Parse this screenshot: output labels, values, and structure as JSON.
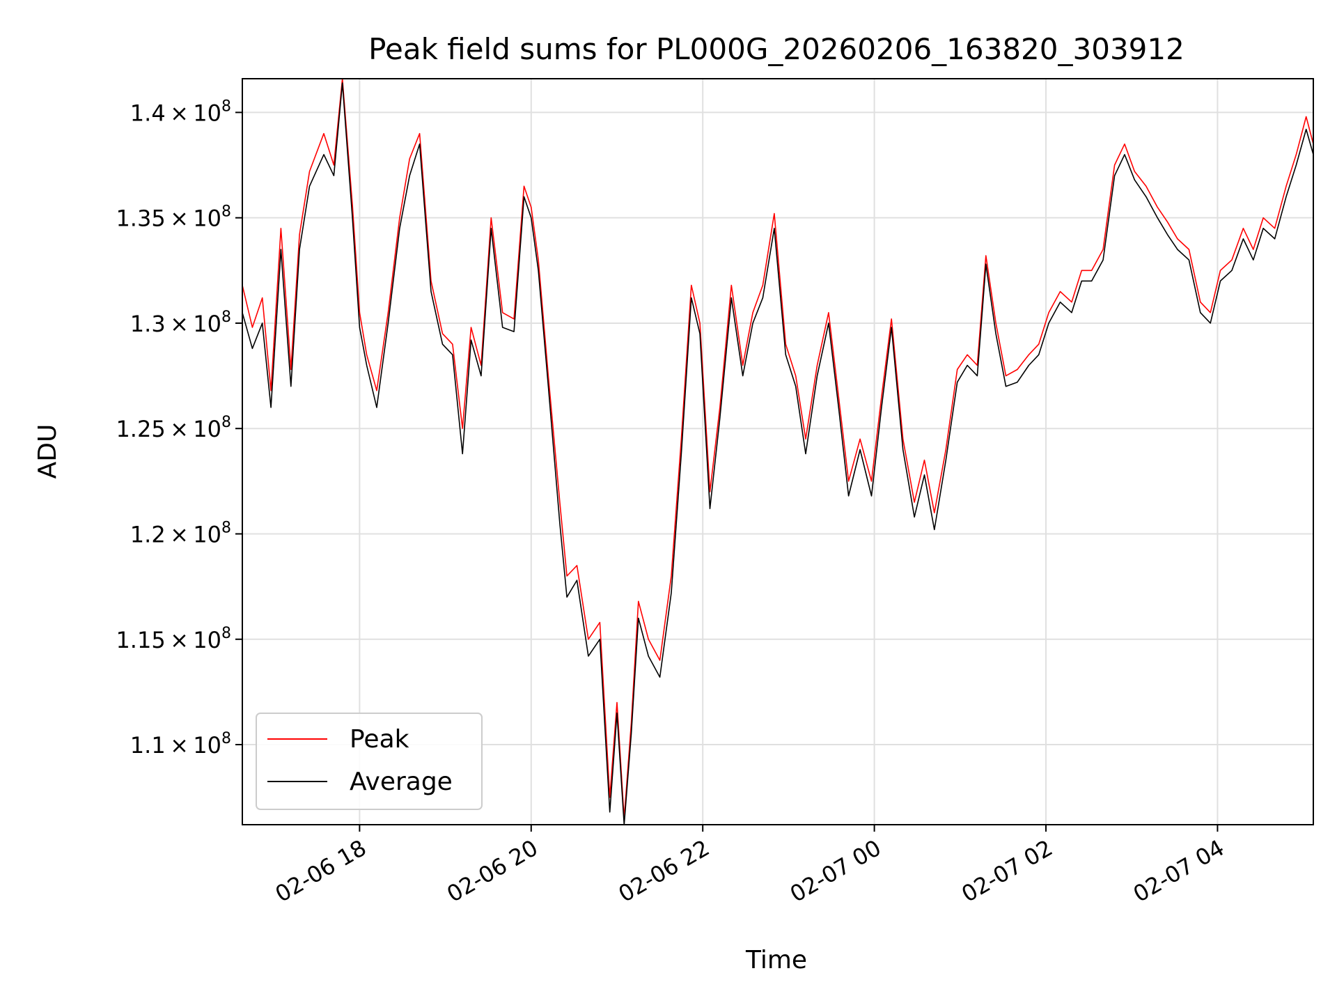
{
  "chart_data": {
    "type": "line",
    "title": "Peak field sums for PL000G_20260206_163820_303912",
    "xlabel": "Time",
    "ylabel": "ADU",
    "ylim": [
      106200000,
      141600000
    ],
    "ytick_values": [
      110000000,
      115000000,
      120000000,
      125000000,
      130000000,
      135000000,
      140000000
    ],
    "yticks": [
      {
        "mantissa": "1.1",
        "exponent": "8"
      },
      {
        "mantissa": "1.15",
        "exponent": "8"
      },
      {
        "mantissa": "1.2",
        "exponent": "8"
      },
      {
        "mantissa": "1.25",
        "exponent": "8"
      },
      {
        "mantissa": "1.3",
        "exponent": "8"
      },
      {
        "mantissa": "1.35",
        "exponent": "8"
      },
      {
        "mantissa": "1.4",
        "exponent": "8"
      }
    ],
    "xlim": [
      "2026-02-06 16:38",
      "2026-02-07 05:07"
    ],
    "xtick_values": [
      "2026-02-06 18:00",
      "2026-02-06 20:00",
      "2026-02-06 22:00",
      "2026-02-07 00:00",
      "2026-02-07 02:00",
      "2026-02-07 04:00"
    ],
    "xticks": [
      "02-06 18",
      "02-06 20",
      "02-06 22",
      "02-07 00",
      "02-07 02",
      "02-07 04"
    ],
    "grid": true,
    "legend_position": "lower-left",
    "series": [
      {
        "name": "Peak",
        "color": "#ff0000",
        "points": [
          [
            "2026-02-06 16:38",
            131.8
          ],
          [
            "2026-02-06 16:45",
            129.8
          ],
          [
            "2026-02-06 16:52",
            131.2
          ],
          [
            "2026-02-06 16:58",
            126.8
          ],
          [
            "2026-02-06 17:05",
            134.5
          ],
          [
            "2026-02-06 17:12",
            127.8
          ],
          [
            "2026-02-06 17:18",
            134.2
          ],
          [
            "2026-02-06 17:25",
            137.2
          ],
          [
            "2026-02-06 17:35",
            139.0
          ],
          [
            "2026-02-06 17:42",
            137.5
          ],
          [
            "2026-02-06 17:48",
            141.6
          ],
          [
            "2026-02-06 17:55",
            135.6
          ],
          [
            "2026-02-06 18:00",
            130.5
          ],
          [
            "2026-02-06 18:05",
            128.5
          ],
          [
            "2026-02-06 18:12",
            126.8
          ],
          [
            "2026-02-06 18:20",
            130.5
          ],
          [
            "2026-02-06 18:28",
            135.0
          ],
          [
            "2026-02-06 18:35",
            137.8
          ],
          [
            "2026-02-06 18:42",
            139.0
          ],
          [
            "2026-02-06 18:50",
            132.0
          ],
          [
            "2026-02-06 18:58",
            129.5
          ],
          [
            "2026-02-06 19:05",
            129.0
          ],
          [
            "2026-02-06 19:12",
            125.0
          ],
          [
            "2026-02-06 19:18",
            129.8
          ],
          [
            "2026-02-06 19:25",
            128.0
          ],
          [
            "2026-02-06 19:32",
            135.0
          ],
          [
            "2026-02-06 19:40",
            130.5
          ],
          [
            "2026-02-06 19:48",
            130.2
          ],
          [
            "2026-02-06 19:55",
            136.5
          ],
          [
            "2026-02-06 20:00",
            135.5
          ],
          [
            "2026-02-06 20:05",
            133.0
          ],
          [
            "2026-02-06 20:12",
            127.5
          ],
          [
            "2026-02-06 20:20",
            121.5
          ],
          [
            "2026-02-06 20:25",
            118.0
          ],
          [
            "2026-02-06 20:32",
            118.5
          ],
          [
            "2026-02-06 20:40",
            115.0
          ],
          [
            "2026-02-06 20:48",
            115.8
          ],
          [
            "2026-02-06 20:55",
            107.5
          ],
          [
            "2026-02-06 21:00",
            112.0
          ],
          [
            "2026-02-06 21:05",
            106.5
          ],
          [
            "2026-02-06 21:10",
            111.0
          ],
          [
            "2026-02-06 21:15",
            116.8
          ],
          [
            "2026-02-06 21:22",
            115.0
          ],
          [
            "2026-02-06 21:30",
            114.0
          ],
          [
            "2026-02-06 21:38",
            118.0
          ],
          [
            "2026-02-06 21:45",
            124.5
          ],
          [
            "2026-02-06 21:52",
            131.8
          ],
          [
            "2026-02-06 21:58",
            130.0
          ],
          [
            "2026-02-06 22:05",
            122.0
          ],
          [
            "2026-02-06 22:12",
            126.0
          ],
          [
            "2026-02-06 22:20",
            131.8
          ],
          [
            "2026-02-06 22:28",
            128.0
          ],
          [
            "2026-02-06 22:35",
            130.5
          ],
          [
            "2026-02-06 22:42",
            131.8
          ],
          [
            "2026-02-06 22:50",
            135.2
          ],
          [
            "2026-02-06 22:58",
            129.0
          ],
          [
            "2026-02-06 23:05",
            127.5
          ],
          [
            "2026-02-06 23:12",
            124.5
          ],
          [
            "2026-02-06 23:20",
            128.0
          ],
          [
            "2026-02-06 23:28",
            130.5
          ],
          [
            "2026-02-06 23:35",
            126.5
          ],
          [
            "2026-02-06 23:42",
            122.5
          ],
          [
            "2026-02-06 23:50",
            124.5
          ],
          [
            "2026-02-06 23:58",
            122.5
          ],
          [
            "2026-02-07 00:05",
            126.5
          ],
          [
            "2026-02-07 00:12",
            130.2
          ],
          [
            "2026-02-07 00:20",
            124.5
          ],
          [
            "2026-02-07 00:28",
            121.5
          ],
          [
            "2026-02-07 00:35",
            123.5
          ],
          [
            "2026-02-07 00:42",
            121.0
          ],
          [
            "2026-02-07 00:50",
            124.0
          ],
          [
            "2026-02-07 00:58",
            127.8
          ],
          [
            "2026-02-07 01:05",
            128.5
          ],
          [
            "2026-02-07 01:12",
            128.0
          ],
          [
            "2026-02-07 01:18",
            133.2
          ],
          [
            "2026-02-07 01:25",
            130.0
          ],
          [
            "2026-02-07 01:32",
            127.5
          ],
          [
            "2026-02-07 01:40",
            127.8
          ],
          [
            "2026-02-07 01:48",
            128.5
          ],
          [
            "2026-02-07 01:55",
            129.0
          ],
          [
            "2026-02-07 02:02",
            130.5
          ],
          [
            "2026-02-07 02:10",
            131.5
          ],
          [
            "2026-02-07 02:18",
            131.0
          ],
          [
            "2026-02-07 02:25",
            132.5
          ],
          [
            "2026-02-07 02:32",
            132.5
          ],
          [
            "2026-02-07 02:40",
            133.5
          ],
          [
            "2026-02-07 02:48",
            137.5
          ],
          [
            "2026-02-07 02:55",
            138.5
          ],
          [
            "2026-02-07 03:02",
            137.2
          ],
          [
            "2026-02-07 03:10",
            136.5
          ],
          [
            "2026-02-07 03:18",
            135.5
          ],
          [
            "2026-02-07 03:25",
            134.8
          ],
          [
            "2026-02-07 03:32",
            134.0
          ],
          [
            "2026-02-07 03:40",
            133.5
          ],
          [
            "2026-02-07 03:48",
            131.0
          ],
          [
            "2026-02-07 03:55",
            130.5
          ],
          [
            "2026-02-07 04:02",
            132.5
          ],
          [
            "2026-02-07 04:10",
            133.0
          ],
          [
            "2026-02-07 04:18",
            134.5
          ],
          [
            "2026-02-07 04:25",
            133.5
          ],
          [
            "2026-02-07 04:32",
            135.0
          ],
          [
            "2026-02-07 04:40",
            134.5
          ],
          [
            "2026-02-07 04:48",
            136.5
          ],
          [
            "2026-02-07 04:55",
            138.0
          ],
          [
            "2026-02-07 05:02",
            139.8
          ],
          [
            "2026-02-07 05:07",
            138.5
          ]
        ]
      },
      {
        "name": "Average",
        "color": "#000000",
        "points": [
          [
            "2026-02-06 16:38",
            130.5
          ],
          [
            "2026-02-06 16:45",
            128.8
          ],
          [
            "2026-02-06 16:52",
            130.0
          ],
          [
            "2026-02-06 16:58",
            126.0
          ],
          [
            "2026-02-06 17:05",
            133.5
          ],
          [
            "2026-02-06 17:12",
            127.0
          ],
          [
            "2026-02-06 17:18",
            133.5
          ],
          [
            "2026-02-06 17:25",
            136.5
          ],
          [
            "2026-02-06 17:35",
            138.0
          ],
          [
            "2026-02-06 17:42",
            137.0
          ],
          [
            "2026-02-06 17:48",
            141.4
          ],
          [
            "2026-02-06 17:55",
            135.0
          ],
          [
            "2026-02-06 18:00",
            129.8
          ],
          [
            "2026-02-06 18:05",
            128.0
          ],
          [
            "2026-02-06 18:12",
            126.0
          ],
          [
            "2026-02-06 18:20",
            130.0
          ],
          [
            "2026-02-06 18:28",
            134.5
          ],
          [
            "2026-02-06 18:35",
            137.0
          ],
          [
            "2026-02-06 18:42",
            138.5
          ],
          [
            "2026-02-06 18:50",
            131.5
          ],
          [
            "2026-02-06 18:58",
            129.0
          ],
          [
            "2026-02-06 19:05",
            128.5
          ],
          [
            "2026-02-06 19:12",
            123.8
          ],
          [
            "2026-02-06 19:18",
            129.2
          ],
          [
            "2026-02-06 19:25",
            127.5
          ],
          [
            "2026-02-06 19:32",
            134.5
          ],
          [
            "2026-02-06 19:40",
            129.8
          ],
          [
            "2026-02-06 19:48",
            129.6
          ],
          [
            "2026-02-06 19:55",
            136.0
          ],
          [
            "2026-02-06 20:00",
            135.0
          ],
          [
            "2026-02-06 20:05",
            132.5
          ],
          [
            "2026-02-06 20:12",
            127.0
          ],
          [
            "2026-02-06 20:20",
            120.5
          ],
          [
            "2026-02-06 20:25",
            117.0
          ],
          [
            "2026-02-06 20:32",
            117.8
          ],
          [
            "2026-02-06 20:40",
            114.2
          ],
          [
            "2026-02-06 20:48",
            115.0
          ],
          [
            "2026-02-06 20:55",
            106.8
          ],
          [
            "2026-02-06 21:00",
            111.5
          ],
          [
            "2026-02-06 21:05",
            106.2
          ],
          [
            "2026-02-06 21:10",
            110.5
          ],
          [
            "2026-02-06 21:15",
            116.0
          ],
          [
            "2026-02-06 21:22",
            114.2
          ],
          [
            "2026-02-06 21:30",
            113.2
          ],
          [
            "2026-02-06 21:38",
            117.2
          ],
          [
            "2026-02-06 21:45",
            123.8
          ],
          [
            "2026-02-06 21:52",
            131.2
          ],
          [
            "2026-02-06 21:58",
            129.5
          ],
          [
            "2026-02-06 22:05",
            121.2
          ],
          [
            "2026-02-06 22:12",
            125.5
          ],
          [
            "2026-02-06 22:20",
            131.2
          ],
          [
            "2026-02-06 22:28",
            127.5
          ],
          [
            "2026-02-06 22:35",
            130.0
          ],
          [
            "2026-02-06 22:42",
            131.2
          ],
          [
            "2026-02-06 22:50",
            134.5
          ],
          [
            "2026-02-06 22:58",
            128.5
          ],
          [
            "2026-02-06 23:05",
            127.0
          ],
          [
            "2026-02-06 23:12",
            123.8
          ],
          [
            "2026-02-06 23:20",
            127.5
          ],
          [
            "2026-02-06 23:28",
            130.0
          ],
          [
            "2026-02-06 23:35",
            126.0
          ],
          [
            "2026-02-06 23:42",
            121.8
          ],
          [
            "2026-02-06 23:50",
            124.0
          ],
          [
            "2026-02-06 23:58",
            121.8
          ],
          [
            "2026-02-07 00:05",
            126.0
          ],
          [
            "2026-02-07 00:12",
            129.8
          ],
          [
            "2026-02-07 00:20",
            124.0
          ],
          [
            "2026-02-07 00:28",
            120.8
          ],
          [
            "2026-02-07 00:35",
            122.8
          ],
          [
            "2026-02-07 00:42",
            120.2
          ],
          [
            "2026-02-07 00:50",
            123.5
          ],
          [
            "2026-02-07 00:58",
            127.2
          ],
          [
            "2026-02-07 01:05",
            128.0
          ],
          [
            "2026-02-07 01:12",
            127.5
          ],
          [
            "2026-02-07 01:18",
            132.8
          ],
          [
            "2026-02-07 01:25",
            129.5
          ],
          [
            "2026-02-07 01:32",
            127.0
          ],
          [
            "2026-02-07 01:40",
            127.2
          ],
          [
            "2026-02-07 01:48",
            128.0
          ],
          [
            "2026-02-07 01:55",
            128.5
          ],
          [
            "2026-02-07 02:02",
            130.0
          ],
          [
            "2026-02-07 02:10",
            131.0
          ],
          [
            "2026-02-07 02:18",
            130.5
          ],
          [
            "2026-02-07 02:25",
            132.0
          ],
          [
            "2026-02-07 02:32",
            132.0
          ],
          [
            "2026-02-07 02:40",
            133.0
          ],
          [
            "2026-02-07 02:48",
            137.0
          ],
          [
            "2026-02-07 02:55",
            138.0
          ],
          [
            "2026-02-07 03:02",
            136.8
          ],
          [
            "2026-02-07 03:10",
            136.0
          ],
          [
            "2026-02-07 03:18",
            135.0
          ],
          [
            "2026-02-07 03:25",
            134.2
          ],
          [
            "2026-02-07 03:32",
            133.5
          ],
          [
            "2026-02-07 03:40",
            133.0
          ],
          [
            "2026-02-07 03:48",
            130.5
          ],
          [
            "2026-02-07 03:55",
            130.0
          ],
          [
            "2026-02-07 04:02",
            132.0
          ],
          [
            "2026-02-07 04:10",
            132.5
          ],
          [
            "2026-02-07 04:18",
            134.0
          ],
          [
            "2026-02-07 04:25",
            133.0
          ],
          [
            "2026-02-07 04:32",
            134.5
          ],
          [
            "2026-02-07 04:40",
            134.0
          ],
          [
            "2026-02-07 04:48",
            136.0
          ],
          [
            "2026-02-07 04:55",
            137.5
          ],
          [
            "2026-02-07 05:02",
            139.2
          ],
          [
            "2026-02-07 05:07",
            138.0
          ]
        ]
      }
    ]
  }
}
